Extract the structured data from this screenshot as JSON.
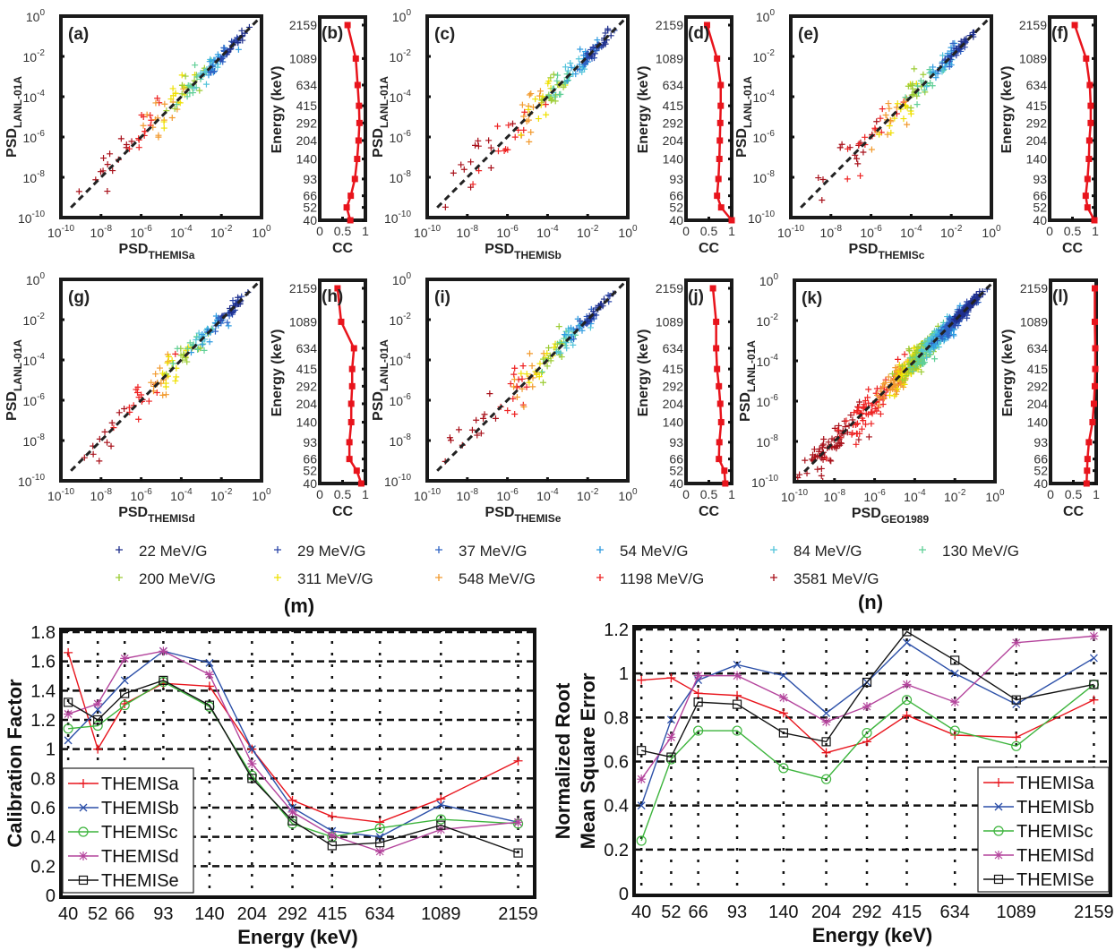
{
  "figure_labels": {
    "m": "(m)",
    "n": "(n)"
  },
  "legend": {
    "marker": "+",
    "items": [
      {
        "label": "22 MeV/G",
        "color": "#1f2f8c"
      },
      {
        "label": "29 MeV/G",
        "color": "#2a45a8"
      },
      {
        "label": "37 MeV/G",
        "color": "#2f63c4"
      },
      {
        "label": "54 MeV/G",
        "color": "#2f9be0"
      },
      {
        "label": "84 MeV/G",
        "color": "#52c4da"
      },
      {
        "label": "130 MeV/G",
        "color": "#5fcf96"
      },
      {
        "label": "200 MeV/G",
        "color": "#9ccc34"
      },
      {
        "label": "311 MeV/G",
        "color": "#efe000"
      },
      {
        "label": "548 MeV/G",
        "color": "#f29a2e"
      },
      {
        "label": "1198 MeV/G",
        "color": "#ee2222"
      },
      {
        "label": "3581 MeV/G",
        "color": "#a8101a"
      }
    ]
  },
  "chart_data": [
    {
      "type": "scatter",
      "panel": "(a)",
      "xlabel": {
        "main": "PSD",
        "sub": "THEMISa"
      },
      "ylabel": {
        "main": "PSD",
        "sub": "LANL-01A"
      },
      "x_scale": "log",
      "y_scale": "log",
      "xlim": [
        1e-10,
        1
      ],
      "ylim": [
        1e-10,
        1
      ],
      "tick_labels": [
        {
          "base": "10",
          "exp": "-10"
        },
        {
          "base": "10",
          "exp": "-8"
        },
        {
          "base": "10",
          "exp": "-6"
        },
        {
          "base": "10",
          "exp": "-4"
        },
        {
          "base": "10",
          "exp": "-2"
        },
        {
          "base": "10",
          "exp": "0"
        }
      ]
    },
    {
      "type": "scatter",
      "panel": "(c)",
      "xlabel": {
        "main": "PSD",
        "sub": "THEMISb"
      },
      "ylabel": {
        "main": "PSD",
        "sub": "LANL-01A"
      },
      "x_scale": "log",
      "y_scale": "log",
      "xlim": [
        1e-10,
        1
      ],
      "ylim": [
        1e-10,
        1
      ],
      "tick_labels": [
        {
          "base": "10",
          "exp": "-10"
        },
        {
          "base": "10",
          "exp": "-8"
        },
        {
          "base": "10",
          "exp": "-6"
        },
        {
          "base": "10",
          "exp": "-4"
        },
        {
          "base": "10",
          "exp": "-2"
        },
        {
          "base": "10",
          "exp": "0"
        }
      ]
    },
    {
      "type": "scatter",
      "panel": "(e)",
      "xlabel": {
        "main": "PSD",
        "sub": "THEMISc"
      },
      "ylabel": {
        "main": "PSD",
        "sub": "LANL-01A"
      },
      "x_scale": "log",
      "y_scale": "log",
      "xlim": [
        1e-10,
        1
      ],
      "ylim": [
        1e-10,
        1
      ],
      "tick_labels": [
        {
          "base": "10",
          "exp": "-10"
        },
        {
          "base": "10",
          "exp": "-8"
        },
        {
          "base": "10",
          "exp": "-6"
        },
        {
          "base": "10",
          "exp": "-4"
        },
        {
          "base": "10",
          "exp": "-2"
        },
        {
          "base": "10",
          "exp": "0"
        }
      ]
    },
    {
      "type": "scatter",
      "panel": "(g)",
      "xlabel": {
        "main": "PSD",
        "sub": "THEMISd"
      },
      "ylabel": {
        "main": "PSD",
        "sub": "LANL-01A"
      },
      "x_scale": "log",
      "y_scale": "log",
      "xlim": [
        1e-10,
        1
      ],
      "ylim": [
        1e-10,
        1
      ],
      "tick_labels": [
        {
          "base": "10",
          "exp": "-10"
        },
        {
          "base": "10",
          "exp": "-8"
        },
        {
          "base": "10",
          "exp": "-6"
        },
        {
          "base": "10",
          "exp": "-4"
        },
        {
          "base": "10",
          "exp": "-2"
        },
        {
          "base": "10",
          "exp": "0"
        }
      ]
    },
    {
      "type": "scatter",
      "panel": "(i)",
      "xlabel": {
        "main": "PSD",
        "sub": "THEMISe"
      },
      "ylabel": {
        "main": "PSD",
        "sub": "LANL-01A"
      },
      "x_scale": "log",
      "y_scale": "log",
      "xlim": [
        1e-10,
        1
      ],
      "ylim": [
        1e-10,
        1
      ],
      "tick_labels": [
        {
          "base": "10",
          "exp": "-10"
        },
        {
          "base": "10",
          "exp": "-8"
        },
        {
          "base": "10",
          "exp": "-6"
        },
        {
          "base": "10",
          "exp": "-4"
        },
        {
          "base": "10",
          "exp": "-2"
        },
        {
          "base": "10",
          "exp": "0"
        }
      ]
    },
    {
      "type": "scatter",
      "panel": "(k)",
      "xlabel": {
        "main": "PSD",
        "sub": "GEO1989"
      },
      "ylabel": {
        "main": "PSD",
        "sub": "LANL-01A"
      },
      "x_scale": "log",
      "y_scale": "log",
      "xlim": [
        1e-10,
        1
      ],
      "ylim": [
        1e-10,
        1
      ],
      "tick_labels": [
        {
          "base": "10",
          "exp": "-10"
        },
        {
          "base": "10",
          "exp": "-8"
        },
        {
          "base": "10",
          "exp": "-6"
        },
        {
          "base": "10",
          "exp": "-4"
        },
        {
          "base": "10",
          "exp": "-2"
        },
        {
          "base": "10",
          "exp": "0"
        }
      ]
    },
    {
      "type": "line",
      "panel": "(b)",
      "xlabel": "CC",
      "ylabel": "Energy (keV)",
      "xlim": [
        0,
        1
      ],
      "xticks": [
        "0",
        "0.5",
        "1"
      ],
      "y_scale": "log",
      "y": [
        40,
        52,
        66,
        93,
        140,
        204,
        292,
        415,
        634,
        1089,
        2159
      ],
      "x": [
        0.67,
        0.59,
        0.68,
        0.77,
        0.82,
        0.85,
        0.87,
        0.86,
        0.83,
        0.79,
        0.61
      ],
      "color": "#e8141c"
    },
    {
      "type": "line",
      "panel": "(d)",
      "xlabel": "CC",
      "ylabel": "Energy (keV)",
      "xlim": [
        0,
        1
      ],
      "xticks": [
        "0",
        "0.5",
        "1"
      ],
      "y_scale": "log",
      "y": [
        40,
        52,
        66,
        93,
        140,
        204,
        292,
        415,
        634,
        1089,
        2159
      ],
      "x": [
        1.0,
        0.77,
        0.68,
        0.71,
        0.73,
        0.74,
        0.75,
        0.76,
        0.76,
        0.68,
        0.46
      ],
      "color": "#e8141c"
    },
    {
      "type": "line",
      "panel": "(f)",
      "xlabel": "CC",
      "ylabel": "Energy (keV)",
      "xlim": [
        0,
        1
      ],
      "xticks": [
        "0",
        "0.5",
        "1"
      ],
      "y_scale": "log",
      "y": [
        40,
        52,
        66,
        93,
        140,
        204,
        292,
        415,
        634,
        1089,
        2159
      ],
      "x": [
        0.98,
        0.83,
        0.79,
        0.83,
        0.86,
        0.87,
        0.9,
        0.9,
        0.88,
        0.8,
        0.55
      ],
      "color": "#e8141c"
    },
    {
      "type": "line",
      "panel": "(h)",
      "xlabel": "CC",
      "ylabel": "Energy (keV)",
      "xlim": [
        0,
        1
      ],
      "xticks": [
        "0",
        "0.5",
        "1"
      ],
      "y_scale": "log",
      "y": [
        40,
        52,
        66,
        93,
        140,
        204,
        292,
        415,
        634,
        1089,
        2159
      ],
      "x": [
        0.91,
        0.81,
        0.65,
        0.65,
        0.69,
        0.69,
        0.71,
        0.71,
        0.75,
        0.47,
        0.39
      ],
      "color": "#e8141c"
    },
    {
      "type": "line",
      "panel": "(j)",
      "xlabel": "CC",
      "ylabel": "Energy (keV)",
      "xlim": [
        0,
        1
      ],
      "xticks": [
        "0",
        "0.5",
        "1"
      ],
      "y_scale": "log",
      "y": [
        40,
        52,
        66,
        93,
        140,
        204,
        292,
        415,
        634,
        1089,
        2159
      ],
      "x": [
        0.86,
        0.84,
        0.72,
        0.73,
        0.77,
        0.75,
        0.72,
        0.68,
        0.66,
        0.66,
        0.59
      ],
      "color": "#e8141c"
    },
    {
      "type": "line",
      "panel": "(l)",
      "xlabel": "CC",
      "ylabel": "Energy (keV)",
      "xlim": [
        0,
        1
      ],
      "xticks": [
        "0",
        "0.5",
        "1"
      ],
      "y_scale": "log",
      "y": [
        40,
        52,
        66,
        93,
        140,
        204,
        292,
        415,
        634,
        1089,
        2159
      ],
      "x": [
        0.79,
        0.8,
        0.81,
        0.84,
        0.92,
        0.95,
        0.97,
        0.98,
        0.98,
        0.97,
        0.97
      ],
      "color": "#e8141c"
    },
    {
      "type": "line",
      "panel": "(m)",
      "xlabel": "Energy (keV)",
      "ylabel": [
        "Calibration Factor"
      ],
      "x_scale": "log",
      "x": [
        40,
        52,
        66,
        93,
        140,
        204,
        292,
        415,
        634,
        1089,
        2159
      ],
      "ylim": [
        0,
        1.8
      ],
      "yticks": [
        0,
        0.2,
        0.4,
        0.6,
        0.8,
        1,
        1.2,
        1.4,
        1.6,
        1.8
      ],
      "grid": true,
      "legend_position": "bottom-left",
      "series": [
        {
          "name": "THEMISa",
          "color": "#e8141c",
          "marker": "plus",
          "values": [
            1.66,
            1.0,
            1.31,
            1.45,
            1.43,
            1.0,
            0.65,
            0.54,
            0.5,
            0.66,
            0.92
          ]
        },
        {
          "name": "THEMISb",
          "color": "#2b4fa8",
          "marker": "x",
          "values": [
            1.06,
            1.27,
            1.47,
            1.67,
            1.59,
            1.0,
            0.6,
            0.44,
            0.4,
            0.62,
            0.5
          ]
        },
        {
          "name": "THEMISc",
          "color": "#3cb43c",
          "marker": "circle",
          "values": [
            1.14,
            1.16,
            1.3,
            1.46,
            1.29,
            0.82,
            0.49,
            0.4,
            0.46,
            0.52,
            0.49
          ]
        },
        {
          "name": "THEMISd",
          "color": "#b4449c",
          "marker": "star",
          "values": [
            1.24,
            1.31,
            1.62,
            1.67,
            1.51,
            0.9,
            0.57,
            0.41,
            0.3,
            0.45,
            0.5
          ]
        },
        {
          "name": "THEMISe",
          "color": "#111111",
          "marker": "square",
          "values": [
            1.32,
            1.2,
            1.38,
            1.47,
            1.3,
            0.8,
            0.51,
            0.34,
            0.36,
            0.48,
            0.29
          ]
        }
      ]
    },
    {
      "type": "line",
      "panel": "(n)",
      "xlabel": "Energy (keV)",
      "ylabel": [
        "Normalized Root",
        "Mean Square Error"
      ],
      "x_scale": "log",
      "x": [
        40,
        52,
        66,
        93,
        140,
        204,
        292,
        415,
        634,
        1089,
        2159
      ],
      "ylim": [
        0,
        1.2
      ],
      "yticks": [
        0,
        0.2,
        0.4,
        0.6,
        0.8,
        1,
        1.2
      ],
      "grid": true,
      "legend_position": "bottom-right",
      "series": [
        {
          "name": "THEMISa",
          "color": "#e8141c",
          "marker": "plus",
          "values": [
            0.97,
            0.98,
            0.91,
            0.9,
            0.82,
            0.64,
            0.69,
            0.81,
            0.72,
            0.71,
            0.88
          ]
        },
        {
          "name": "THEMISb",
          "color": "#2b4fa8",
          "marker": "x",
          "values": [
            0.4,
            0.79,
            0.97,
            1.04,
            0.99,
            0.82,
            0.96,
            1.14,
            1.0,
            0.86,
            1.07
          ]
        },
        {
          "name": "THEMISc",
          "color": "#3cb43c",
          "marker": "circle",
          "values": [
            0.24,
            0.61,
            0.74,
            0.74,
            0.57,
            0.52,
            0.73,
            0.88,
            0.74,
            0.67,
            0.95
          ]
        },
        {
          "name": "THEMISd",
          "color": "#b4449c",
          "marker": "star",
          "values": [
            0.52,
            0.71,
            0.99,
            0.99,
            0.89,
            0.78,
            0.85,
            0.95,
            0.87,
            1.14,
            1.17
          ]
        },
        {
          "name": "THEMISe",
          "color": "#111111",
          "marker": "square",
          "values": [
            0.65,
            0.62,
            0.87,
            0.86,
            0.73,
            0.69,
            0.96,
            1.19,
            1.06,
            0.88,
            0.95
          ]
        }
      ]
    }
  ]
}
